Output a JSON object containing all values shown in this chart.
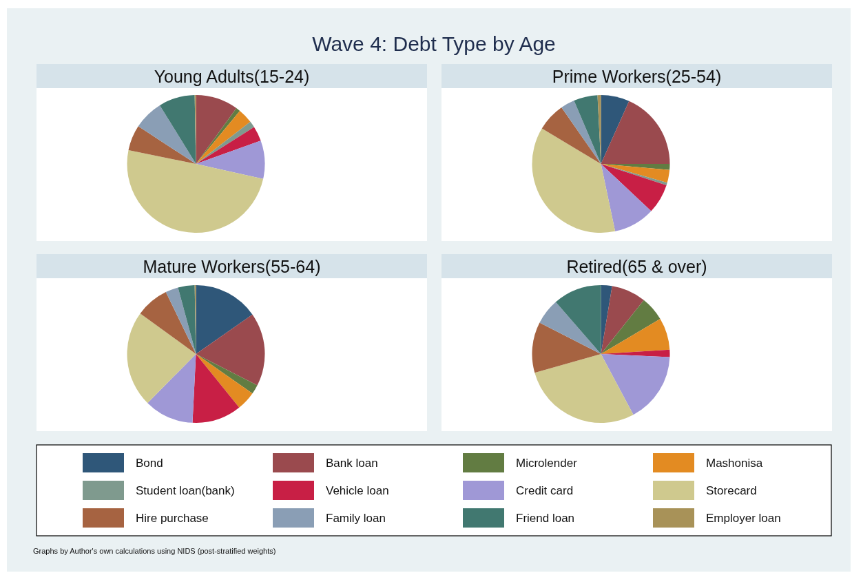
{
  "chart_data": [
    {
      "type": "pie",
      "title": "Young Adults(15-24)",
      "annotations": [
        "Wave 4: Debt Type by Age",
        "Graphs by Author's own calculations using NIDS (post-stratified weights)"
      ],
      "legend": "bottom",
      "categories": [
        "Bond",
        "Bank loan",
        "Microlender",
        "Mashonisa",
        "Student loan(bank)",
        "Vehicle loan",
        "Credit card",
        "Storecard",
        "Hire purchase",
        "Family loan",
        "Friend loan",
        "Employer loan"
      ],
      "values": [
        0,
        10,
        1,
        3.5,
        1.5,
        3.5,
        9,
        49.7,
        6,
        7,
        8.5,
        0.3
      ],
      "colors": [
        "#2f5779",
        "#9a4a4e",
        "#627c42",
        "#e38b22",
        "#7f9a8e",
        "#c81f45",
        "#9f98d6",
        "#cfc98e",
        "#a66341",
        "#8a9eb5",
        "#417870",
        "#a89258"
      ]
    },
    {
      "type": "pie",
      "title": "Prime Workers(25-54)",
      "categories": [
        null,
        null,
        null,
        null,
        null,
        null,
        null,
        null,
        null,
        null,
        null,
        null
      ],
      "values": [
        6.7,
        18.3,
        1.4,
        3,
        0.6,
        7,
        9.7,
        36.9,
        6.7,
        3.3,
        5.6,
        0.8
      ],
      "colors": [
        "#2f5779",
        "#9a4a4e",
        "#627c42",
        "#e38b22",
        "#7f9a8e",
        "#c81f45",
        "#9f98d6",
        "#cfc98e",
        "#a66341",
        "#8a9eb5",
        "#417870",
        "#a89258"
      ]
    },
    {
      "type": "pie",
      "title": "Mature Workers(55-64)",
      "categories": [
        null,
        null,
        null,
        null,
        null,
        null,
        null,
        null,
        null,
        null,
        null,
        null
      ],
      "values": [
        15.3,
        17.2,
        2.2,
        4.5,
        0,
        11.6,
        11.6,
        22.6,
        7.8,
        3,
        3.9,
        0.3
      ],
      "colors": [
        "#2f5779",
        "#9a4a4e",
        "#627c42",
        "#e38b22",
        "#7f9a8e",
        "#c81f45",
        "#9f98d6",
        "#cfc98e",
        "#a66341",
        "#8a9eb5",
        "#417870",
        "#a89258"
      ]
    },
    {
      "type": "pie",
      "title": "Retired(65 & over)",
      "categories": [
        null,
        null,
        null,
        null,
        null,
        null,
        null,
        null,
        null,
        null,
        null,
        null
      ],
      "values": [
        2.6,
        8.1,
        5.8,
        7.5,
        0,
        1.7,
        16.5,
        28.4,
        11.9,
        6.1,
        11.4,
        0
      ],
      "colors": [
        "#2f5779",
        "#9a4a4e",
        "#627c42",
        "#e38b22",
        "#7f9a8e",
        "#c81f45",
        "#9f98d6",
        "#cfc98e",
        "#a66341",
        "#8a9eb5",
        "#417870",
        "#a89258"
      ]
    }
  ]
}
